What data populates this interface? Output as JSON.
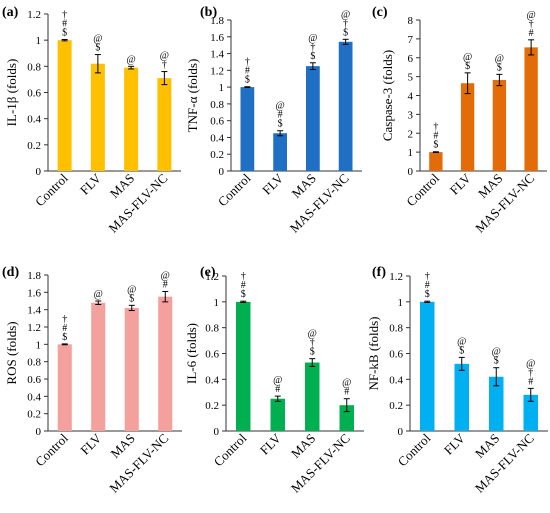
{
  "chart_data": [
    {
      "type": "bar",
      "panel_label": "(a)",
      "ylabel": "IL-1β (folds)",
      "categories": [
        "Control",
        "FLV",
        "MAS",
        "MAS-FLV-NC"
      ],
      "values": [
        1.0,
        0.82,
        0.79,
        0.71
      ],
      "errors": [
        0.005,
        0.07,
        0.01,
        0.05
      ],
      "significance": [
        [
          "†",
          "#",
          "$"
        ],
        [
          "@",
          "$"
        ],
        [
          "@"
        ],
        [
          "@",
          "†"
        ]
      ],
      "ylim": [
        0,
        1.2
      ],
      "yticks": [
        "0",
        "0.2",
        "0.4",
        "0.6",
        "0.8",
        "1",
        "1.2"
      ],
      "color": "#FFC000"
    },
    {
      "type": "bar",
      "panel_label": "(b)",
      "ylabel": "TNF-α (folds)",
      "categories": [
        "Control",
        "FLV",
        "MAS",
        "MAS-FLV-NC"
      ],
      "values": [
        1.0,
        0.45,
        1.25,
        1.54
      ],
      "errors": [
        0.005,
        0.03,
        0.04,
        0.03
      ],
      "significance": [
        [
          "†",
          "#",
          "$"
        ],
        [
          "@",
          "#",
          "$"
        ],
        [
          "@",
          "†",
          "$"
        ],
        [
          "@",
          "†",
          "$"
        ]
      ],
      "ylim": [
        0,
        1.8
      ],
      "yticks": [
        "0",
        "0.2",
        "0.4",
        "0.6",
        "0.8",
        "1",
        "1.2",
        "1.4",
        "1.6",
        "1.8"
      ],
      "color": "#1F6FC5"
    },
    {
      "type": "bar",
      "panel_label": "(c)",
      "ylabel": "Caspase-3 (folds)",
      "categories": [
        "Control",
        "FLV",
        "MAS",
        "MAS-FLV-NC"
      ],
      "values": [
        1.0,
        4.65,
        4.82,
        6.55
      ],
      "errors": [
        0.02,
        0.55,
        0.3,
        0.4
      ],
      "significance": [
        [
          "†",
          "#",
          "$"
        ],
        [
          "@",
          "$"
        ],
        [
          "@",
          "$"
        ],
        [
          "@",
          "†",
          "#"
        ]
      ],
      "ylim": [
        0,
        8
      ],
      "yticks": [
        "0",
        "1",
        "2",
        "3",
        "4",
        "5",
        "6",
        "7",
        "8"
      ],
      "color": "#E36C09"
    },
    {
      "type": "bar",
      "panel_label": "(d)",
      "ylabel": "ROS (folds)",
      "categories": [
        "Control",
        "FLV",
        "MAS",
        "MAS-FLV-NC"
      ],
      "values": [
        1.0,
        1.48,
        1.42,
        1.55
      ],
      "errors": [
        0.005,
        0.02,
        0.03,
        0.06
      ],
      "significance": [
        [
          "†",
          "#",
          "$"
        ],
        [
          "@"
        ],
        [
          "@",
          "$"
        ],
        [
          "@",
          "#"
        ]
      ],
      "ylim": [
        0,
        1.8
      ],
      "yticks": [
        "0",
        "0.2",
        "0.4",
        "0.6",
        "0.8",
        "1",
        "1.2",
        "1.4",
        "1.6",
        "1.8"
      ],
      "color": "#F4A09C"
    },
    {
      "type": "bar",
      "panel_label": "(e)",
      "ylabel": "IL-6 (folds)",
      "categories": [
        "Control",
        "FLV",
        "MAS",
        "MAS-FLV-NC"
      ],
      "values": [
        1.0,
        0.25,
        0.53,
        0.2
      ],
      "errors": [
        0.005,
        0.02,
        0.03,
        0.05
      ],
      "significance": [
        [
          "†",
          "#",
          "$"
        ],
        [
          "@",
          "#"
        ],
        [
          "@",
          "†",
          "$"
        ],
        [
          "@",
          "#"
        ]
      ],
      "ylim": [
        0,
        1.2
      ],
      "yticks": [
        "0",
        "0.2",
        "0.4",
        "0.6",
        "0.8",
        "1",
        "1.2"
      ],
      "color": "#00B050"
    },
    {
      "type": "bar",
      "panel_label": "(f)",
      "ylabel": "NF-kB (folds)",
      "categories": [
        "Control",
        "FLV",
        "MAS",
        "MAS-FLV-NC"
      ],
      "values": [
        1.0,
        0.52,
        0.42,
        0.28
      ],
      "errors": [
        0.005,
        0.05,
        0.07,
        0.05
      ],
      "significance": [
        [
          "†",
          "#",
          "$"
        ],
        [
          "@",
          "$"
        ],
        [
          "@",
          "$"
        ],
        [
          "@",
          "†",
          "#"
        ]
      ],
      "ylim": [
        0,
        1.2
      ],
      "yticks": [
        "0",
        "0.2",
        "0.4",
        "0.6",
        "0.8",
        "1",
        "1.2"
      ],
      "color": "#00B0F0"
    }
  ]
}
